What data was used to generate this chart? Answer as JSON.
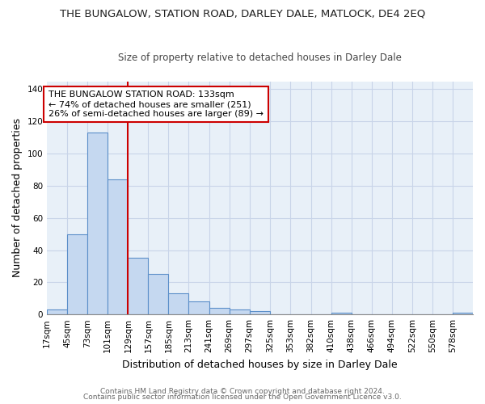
{
  "title": "THE BUNGALOW, STATION ROAD, DARLEY DALE, MATLOCK, DE4 2EQ",
  "subtitle": "Size of property relative to detached houses in Darley Dale",
  "xlabel": "Distribution of detached houses by size in Darley Dale",
  "ylabel": "Number of detached properties",
  "bar_color": "#c5d8f0",
  "bar_edge_color": "#5b8fc9",
  "grid_color": "#c8d4e8",
  "bg_color": "#e8f0f8",
  "annotation_box_color": "#ffffff",
  "annotation_border_color": "#cc0000",
  "vline_color": "#cc0000",
  "annotation_title": "THE BUNGALOW STATION ROAD: 133sqm",
  "annotation_line1": "← 74% of detached houses are smaller (251)",
  "annotation_line2": "26% of semi-detached houses are larger (89) →",
  "categories": [
    "17sqm",
    "45sqm",
    "73sqm",
    "101sqm",
    "129sqm",
    "157sqm",
    "185sqm",
    "213sqm",
    "241sqm",
    "269sqm",
    "297sqm",
    "325sqm",
    "353sqm",
    "382sqm",
    "410sqm",
    "438sqm",
    "466sqm",
    "494sqm",
    "522sqm",
    "550sqm",
    "578sqm"
  ],
  "bin_edges": [
    17,
    45,
    73,
    101,
    129,
    157,
    185,
    213,
    241,
    269,
    297,
    325,
    353,
    382,
    410,
    438,
    466,
    494,
    522,
    550,
    578
  ],
  "values": [
    3,
    50,
    113,
    84,
    35,
    25,
    13,
    8,
    4,
    3,
    2,
    0,
    0,
    0,
    1,
    0,
    0,
    0,
    0,
    0,
    1
  ],
  "vline_bin_index": 4,
  "ylim": [
    0,
    145
  ],
  "yticks": [
    0,
    20,
    40,
    60,
    80,
    100,
    120,
    140
  ],
  "title_fontsize": 9.5,
  "subtitle_fontsize": 8.5,
  "tick_fontsize": 7.5,
  "label_fontsize": 9,
  "annot_fontsize": 8,
  "footer1": "Contains HM Land Registry data © Crown copyright and database right 2024.",
  "footer2": "Contains public sector information licensed under the Open Government Licence v3.0."
}
